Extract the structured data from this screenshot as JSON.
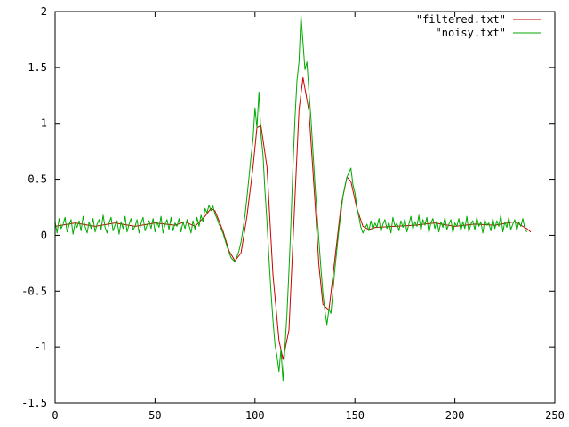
{
  "chart_data": {
    "type": "line",
    "title": "",
    "xlabel": "",
    "ylabel": "",
    "xlim": [
      0,
      250
    ],
    "ylim": [
      -1.5,
      2
    ],
    "x_ticks": [
      "0",
      "50",
      "100",
      "150",
      "200",
      "250"
    ],
    "y_ticks": [
      "-1.5",
      "-1",
      "-0.5",
      "0",
      "0.5",
      "1",
      "1.5",
      "2"
    ],
    "legend_position": "top-right",
    "grid": false,
    "series": [
      {
        "name": "\"filtered.txt\"",
        "color": "#cc0000",
        "x": [
          0,
          10,
          20,
          30,
          40,
          50,
          60,
          65,
          70,
          75,
          78,
          80,
          84,
          87,
          90,
          93,
          96,
          99,
          101,
          103,
          106,
          109,
          112,
          114,
          117,
          120,
          122,
          124,
          127,
          130,
          132,
          134,
          137,
          140,
          143,
          146,
          148,
          151,
          154,
          157,
          160,
          170,
          180,
          190,
          200,
          210,
          220,
          230,
          236,
          238
        ],
        "y": [
          0.08,
          0.11,
          0.08,
          0.11,
          0.08,
          0.11,
          0.09,
          0.12,
          0.08,
          0.17,
          0.24,
          0.22,
          0.04,
          -0.14,
          -0.23,
          -0.16,
          0.17,
          0.61,
          0.96,
          0.98,
          0.61,
          -0.35,
          -0.94,
          -1.11,
          -0.85,
          0.34,
          1.12,
          1.41,
          1.11,
          0.31,
          -0.27,
          -0.62,
          -0.67,
          -0.21,
          0.26,
          0.52,
          0.48,
          0.24,
          0.08,
          0.05,
          0.07,
          0.08,
          0.09,
          0.11,
          0.08,
          0.1,
          0.09,
          0.12,
          0.06,
          0.03
        ]
      },
      {
        "name": "\"noisy.txt\"",
        "color": "#00aa00",
        "x": [
          0,
          1,
          2,
          3,
          4,
          5,
          6,
          7,
          8,
          9,
          10,
          11,
          12,
          13,
          14,
          15,
          16,
          17,
          18,
          19,
          20,
          21,
          22,
          23,
          24,
          25,
          26,
          27,
          28,
          29,
          30,
          31,
          32,
          33,
          34,
          35,
          36,
          37,
          38,
          39,
          40,
          41,
          42,
          43,
          44,
          45,
          46,
          47,
          48,
          49,
          50,
          51,
          52,
          53,
          54,
          55,
          56,
          57,
          58,
          59,
          60,
          61,
          62,
          63,
          64,
          65,
          66,
          67,
          68,
          69,
          70,
          71,
          72,
          73,
          74,
          75,
          76,
          77,
          78,
          79,
          80,
          81,
          82,
          83,
          84,
          85,
          86,
          87,
          88,
          89,
          90,
          91,
          92,
          93,
          94,
          95,
          96,
          97,
          98,
          99,
          100,
          101,
          102,
          103,
          104,
          105,
          106,
          107,
          108,
          109,
          110,
          111,
          112,
          113,
          114,
          115,
          116,
          117,
          118,
          119,
          120,
          121,
          122,
          123,
          124,
          125,
          126,
          127,
          128,
          129,
          130,
          131,
          132,
          133,
          134,
          135,
          136,
          137,
          138,
          139,
          140,
          141,
          142,
          143,
          144,
          145,
          146,
          147,
          148,
          149,
          150,
          151,
          152,
          153,
          154,
          155,
          156,
          157,
          158,
          159,
          160,
          161,
          162,
          163,
          164,
          165,
          166,
          167,
          168,
          169,
          170,
          171,
          172,
          173,
          174,
          175,
          176,
          177,
          178,
          179,
          180,
          181,
          182,
          183,
          184,
          185,
          186,
          187,
          188,
          189,
          190,
          191,
          192,
          193,
          194,
          195,
          196,
          197,
          198,
          199,
          200,
          201,
          202,
          203,
          204,
          205,
          206,
          207,
          208,
          209,
          210,
          211,
          212,
          213,
          214,
          215,
          216,
          217,
          218,
          219,
          220,
          221,
          222,
          223,
          224,
          225,
          226,
          227,
          228,
          229,
          230,
          231,
          232,
          233,
          234,
          235,
          236
        ],
        "y": [
          0.12,
          0.02,
          0.15,
          0.06,
          0.1,
          0.16,
          0.03,
          0.09,
          0.14,
          0.01,
          0.11,
          0.07,
          0.13,
          0.04,
          0.17,
          0.08,
          0.02,
          0.12,
          0.06,
          0.15,
          0.03,
          0.1,
          0.14,
          0.05,
          0.18,
          0.07,
          0.02,
          0.11,
          0.16,
          0.04,
          0.09,
          0.13,
          0.01,
          0.12,
          0.06,
          0.17,
          0.03,
          0.1,
          0.15,
          0.05,
          0.08,
          0.14,
          0.02,
          0.11,
          0.16,
          0.04,
          0.09,
          0.13,
          0.06,
          0.15,
          0.03,
          0.12,
          0.07,
          0.17,
          0.02,
          0.1,
          0.14,
          0.05,
          0.16,
          0.04,
          0.11,
          0.08,
          0.15,
          0.03,
          0.12,
          0.06,
          0.14,
          0.09,
          0.02,
          0.13,
          0.05,
          0.16,
          0.08,
          0.18,
          0.12,
          0.24,
          0.2,
          0.27,
          0.22,
          0.26,
          0.19,
          0.15,
          0.1,
          0.06,
          0.02,
          -0.04,
          -0.1,
          -0.15,
          -0.2,
          -0.22,
          -0.24,
          -0.19,
          -0.14,
          -0.06,
          0.05,
          0.18,
          0.34,
          0.52,
          0.7,
          0.86,
          1.14,
          0.96,
          1.28,
          0.9,
          0.72,
          0.4,
          0.12,
          -0.2,
          -0.5,
          -0.76,
          -0.98,
          -1.08,
          -1.22,
          -1.02,
          -1.3,
          -1.0,
          -0.7,
          -0.32,
          0.12,
          0.62,
          1.05,
          1.38,
          1.55,
          1.97,
          1.72,
          1.48,
          1.55,
          1.28,
          1.05,
          0.75,
          0.46,
          0.2,
          -0.05,
          -0.3,
          -0.52,
          -0.68,
          -0.8,
          -0.66,
          -0.7,
          -0.5,
          -0.3,
          -0.12,
          0.05,
          0.2,
          0.35,
          0.44,
          0.52,
          0.56,
          0.6,
          0.45,
          0.38,
          0.25,
          0.16,
          0.07,
          0.02,
          0.06,
          0.1,
          0.04,
          0.13,
          0.05,
          0.11,
          0.07,
          0.15,
          0.03,
          0.1,
          0.14,
          0.06,
          0.12,
          0.02,
          0.16,
          0.08,
          0.11,
          0.04,
          0.13,
          0.07,
          0.15,
          0.03,
          0.1,
          0.17,
          0.05,
          0.12,
          0.08,
          0.18,
          0.04,
          0.14,
          0.09,
          0.16,
          0.02,
          0.11,
          0.15,
          0.06,
          0.13,
          0.03,
          0.12,
          0.07,
          0.16,
          0.05,
          0.1,
          0.14,
          0.02,
          0.11,
          0.08,
          0.15,
          0.04,
          0.12,
          0.06,
          0.17,
          0.03,
          0.1,
          0.13,
          0.05,
          0.16,
          0.08,
          0.12,
          0.02,
          0.14,
          0.09,
          0.11,
          0.04,
          0.15,
          0.06,
          0.13,
          0.08,
          0.18,
          0.03,
          0.12,
          0.07,
          0.16,
          0.05,
          0.1,
          0.14,
          0.04,
          0.12,
          0.08,
          0.15,
          0.06,
          0.03
        ]
      }
    ]
  }
}
